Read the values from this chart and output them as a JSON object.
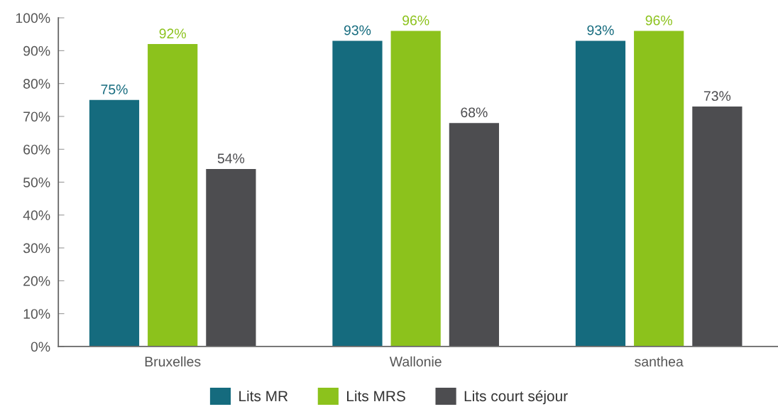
{
  "chart_data": {
    "type": "bar",
    "categories": [
      "Bruxelles",
      "Wallonie",
      "santhea"
    ],
    "series": [
      {
        "name": "Lits MR",
        "color": "#156b7e",
        "values": [
          75,
          93,
          93
        ],
        "value_labels": [
          "75%",
          "93%",
          "93%"
        ]
      },
      {
        "name": "Lits MRS",
        "color": "#8cc21c",
        "values": [
          92,
          96,
          96
        ],
        "value_labels": [
          "92%",
          "96%",
          "96%"
        ]
      },
      {
        "name": "Lits court séjour",
        "color": "#4d4d50",
        "values": [
          54,
          68,
          73
        ],
        "value_labels": [
          "54%",
          "68%",
          "73%"
        ]
      }
    ],
    "ylim": [
      0,
      100
    ],
    "yticks": [
      {
        "value": 0,
        "label": "0%"
      },
      {
        "value": 10,
        "label": "10%"
      },
      {
        "value": 20,
        "label": "20%"
      },
      {
        "value": 30,
        "label": "30%"
      },
      {
        "value": 40,
        "label": "40%"
      },
      {
        "value": 50,
        "label": "50%"
      },
      {
        "value": 60,
        "label": "60%"
      },
      {
        "value": 70,
        "label": "70%"
      },
      {
        "value": 80,
        "label": "80%"
      },
      {
        "value": 90,
        "label": "90%"
      },
      {
        "value": 100,
        "label": "100%"
      }
    ],
    "grid": false,
    "legend": "bottom"
  }
}
